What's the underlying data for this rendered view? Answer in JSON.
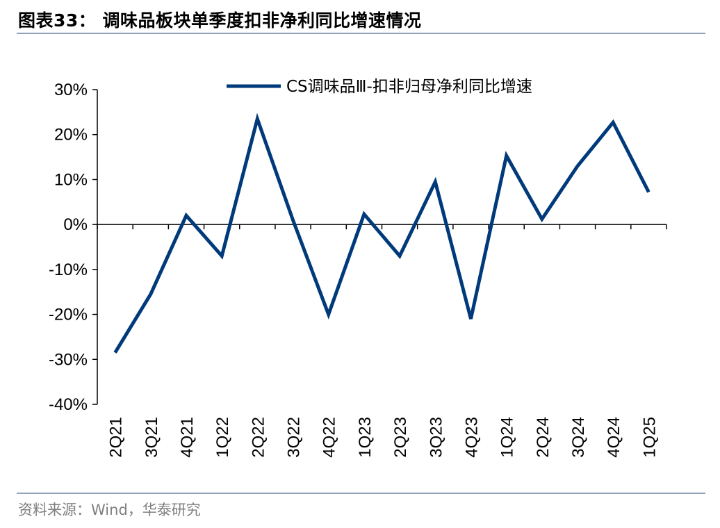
{
  "header": {
    "title": "图表33： 调味品板块单季度扣非净利同比增速情况"
  },
  "footer": {
    "source": "资料来源：Wind，华泰研究"
  },
  "colors": {
    "series": "#003a7a",
    "rule": "#8fa3bd",
    "source_text": "#7f7f7f"
  },
  "chart_data": {
    "type": "line",
    "title": "",
    "xlabel": "",
    "ylabel": "",
    "categories": [
      "2Q21",
      "3Q21",
      "4Q21",
      "1Q22",
      "2Q22",
      "3Q22",
      "4Q22",
      "1Q23",
      "2Q23",
      "3Q23",
      "4Q23",
      "1Q24",
      "2Q24",
      "3Q24",
      "4Q24",
      "1Q25"
    ],
    "series": [
      {
        "name": "CS调味品Ⅲ-扣非归母净利同比增速",
        "values": [
          -28.5,
          -15.5,
          2.0,
          -7.0,
          23.5,
          1.0,
          -20.0,
          2.3,
          -7.0,
          9.5,
          -21.0,
          15.3,
          1.2,
          13.0,
          22.7,
          7.2
        ]
      }
    ],
    "ylim": [
      -40,
      30
    ],
    "yticks": [
      "30%",
      "20%",
      "10%",
      "0%",
      "-10%",
      "-20%",
      "-30%",
      "-40%"
    ],
    "y_tick_values": [
      30,
      20,
      10,
      0,
      -10,
      -20,
      -30,
      -40
    ],
    "legend_position": "top-right",
    "grid": false
  }
}
